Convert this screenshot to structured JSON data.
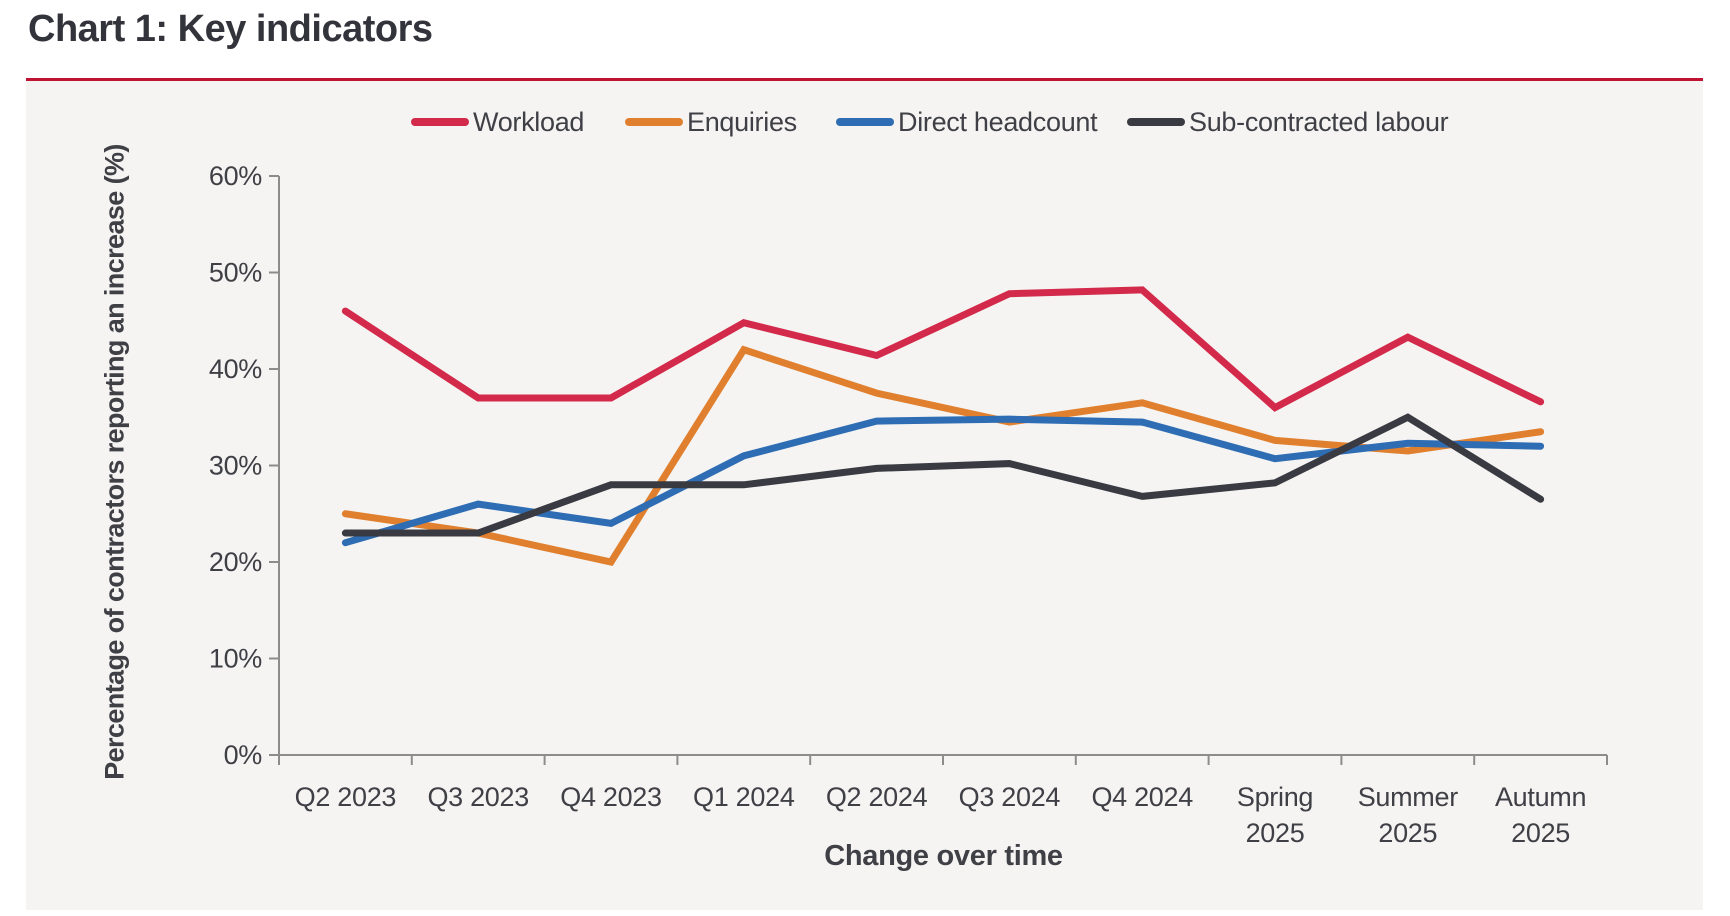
{
  "header": {
    "title": "Chart 1: Key indicators"
  },
  "colors": {
    "title_text": "#33333b",
    "rule_red": "#c01334",
    "card_background": "#f5f4f2",
    "axis_line": "#8c8c8c",
    "label_text": "#3f3f46",
    "workload_red": "#d3294a",
    "enquiries_orange": "#e0802f",
    "direct_headcount_blue": "#2e6cb3",
    "subcontracted_dark": "#3a3a42"
  },
  "chart_data": {
    "type": "line",
    "title": "Chart 1: Key indicators",
    "xlabel": "Change over time",
    "ylabel": "Percentage of contractors reporting an increase (%)",
    "categories": [
      "Q2 2023",
      "Q3 2023",
      "Q4 2023",
      "Q1 2024",
      "Q2 2024",
      "Q3 2024",
      "Q4 2024",
      "Spring 2025",
      "Summer 2025",
      "Autumn 2025"
    ],
    "y_ticks": [
      "0%",
      "10%",
      "20%",
      "30%",
      "40%",
      "50%",
      "60%"
    ],
    "ylim": [
      0,
      60
    ],
    "grid": false,
    "legend_position": "top",
    "series": [
      {
        "name": "Workload",
        "color": "#d3294a",
        "values": [
          46,
          37,
          37,
          44.8,
          41.4,
          47.8,
          48.2,
          36,
          43.3,
          36.6
        ]
      },
      {
        "name": "Enquiries",
        "color": "#e0802f",
        "values": [
          25,
          23,
          20,
          42,
          37.5,
          34.5,
          36.5,
          32.6,
          31.5,
          33.5
        ]
      },
      {
        "name": "Direct headcount",
        "color": "#2e6cb3",
        "values": [
          22,
          26,
          24,
          31,
          34.6,
          34.8,
          34.5,
          30.7,
          32.3,
          32
        ]
      },
      {
        "name": "Sub-contracted labour",
        "color": "#3a3a42",
        "values": [
          23,
          23,
          28,
          28,
          29.7,
          30.2,
          26.8,
          28.2,
          35,
          26.5
        ]
      }
    ]
  }
}
